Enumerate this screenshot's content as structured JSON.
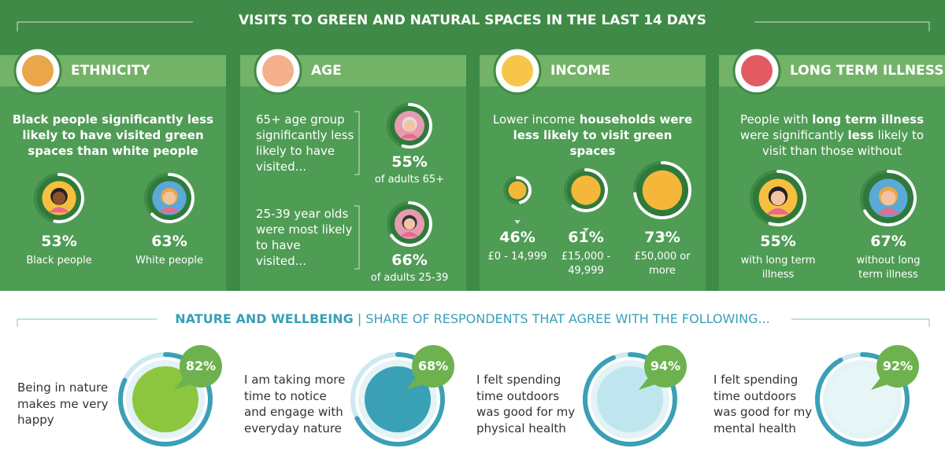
{
  "title": "VISITS TO GREEN AND NATURAL SPACES IN THE LAST 14 DAYS",
  "panels": [
    {
      "heading": "ETHNICITY",
      "description": [
        "Black people significantly less likely to have visited green spaces than white people"
      ],
      "stats": [
        {
          "value": 53,
          "label": "53%",
          "caption": "Black people"
        },
        {
          "value": 63,
          "label": "63%",
          "caption": "White people"
        }
      ]
    },
    {
      "heading": "AGE",
      "stats": [
        {
          "text": "65+ age group significantly less likely to have visited...",
          "value": 55,
          "label": "55%",
          "caption": "of adults 65+"
        },
        {
          "text": "25-39 year olds were most likely to have visited...",
          "value": 66,
          "label": "66%",
          "caption": "of adults 25-39"
        }
      ]
    },
    {
      "heading": "INCOME",
      "description": [
        "Lower income",
        " households were less likely to visit green spaces"
      ],
      "stats": [
        {
          "value": 46,
          "label": "46%",
          "caption": "£0 - 14,999"
        },
        {
          "value": 61,
          "label": "61%",
          "caption": "£15,000 - 49,999"
        },
        {
          "value": 73,
          "label": "73%",
          "caption": "£50,000 or more"
        }
      ]
    },
    {
      "heading": "LONG TERM ILLNESS",
      "description": [
        "People with ",
        "long term illness",
        " were significantly ",
        "less",
        " likely to visit than those without"
      ],
      "stats": [
        {
          "value": 55,
          "label": "55%",
          "caption": "with long term illness"
        },
        {
          "value": 67,
          "label": "67%",
          "caption": "without long term illness"
        }
      ]
    }
  ],
  "wellbeing": {
    "title": "NATURE AND WELLBEING",
    "subtitle": "| SHARE OF RESPONDENTS THAT AGREE WITH THE FOLLOWING...",
    "items": [
      {
        "text": "Being in nature makes me very happy",
        "value": 82,
        "label": "82%"
      },
      {
        "text": "I am taking more time to notice and engage with everyday nature",
        "value": 68,
        "label": "68%"
      },
      {
        "text": "I felt spending time outdoors was good for my physical health",
        "value": 94,
        "label": "94%"
      },
      {
        "text": "I felt spending time outdoors was good for my mental health",
        "value": 92,
        "label": "92%"
      }
    ]
  }
}
